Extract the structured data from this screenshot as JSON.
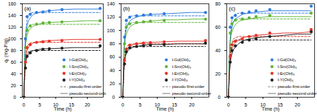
{
  "chart_data": [
    {
      "type": "scatter",
      "title": "(a)",
      "x_label": "Time (h)",
      "y_label": "qₜ (mg-P/g)",
      "xlim": [
        -0.5,
        25
      ],
      "xticks": [
        0,
        5,
        10,
        15,
        20
      ],
      "ylim": [
        0,
        160
      ],
      "yticks": [
        0,
        20,
        40,
        60,
        80,
        100,
        120,
        140,
        160
      ],
      "legend": "lower right",
      "x": [
        0,
        0.5,
        1,
        2,
        4,
        6,
        8,
        12,
        24
      ],
      "fit_x": [
        0,
        0.25,
        0.5,
        0.75,
        1,
        1.5,
        2,
        3,
        4,
        6,
        8,
        12,
        16,
        20,
        24
      ],
      "fits": [
        {
          "name": "pseudo-first-order",
          "line_style": "dashed"
        },
        {
          "name": "pseudo-second-order",
          "line_style": "solid"
        }
      ],
      "series": [
        {
          "name": "l-Gd(OH)₃",
          "color": "#2f7bdc",
          "marker": "circle",
          "values": [
            0,
            100,
            138,
            142,
            145,
            146,
            148,
            150,
            152
          ],
          "fit_values": [
            [
              0,
              65,
              102,
              122,
              132,
              141,
              144,
              145,
              145,
              145,
              145,
              145,
              145,
              145,
              145
            ],
            [
              0,
              73,
              101,
              115,
              122,
              132,
              136,
              142,
              144,
              147,
              148,
              150,
              151,
              151,
              151
            ]
          ]
        },
        {
          "name": "l-Sm(OH)₃",
          "color": "#5db535",
          "marker": "circle",
          "values": [
            0,
            85,
            115,
            122,
            125,
            127,
            128,
            129,
            131
          ],
          "fit_values": [
            [
              0,
              56,
              88,
              105,
              114,
              121,
              124,
              125,
              125,
              125,
              125,
              125,
              125,
              125,
              125
            ],
            [
              0,
              63,
              87,
              99,
              106,
              114,
              117,
              122,
              124,
              127,
              128,
              129,
              130,
              131,
              131
            ]
          ]
        },
        {
          "name": "l-Er(OH)₃",
          "color": "#e5332a",
          "marker": "circle",
          "values": [
            0,
            60,
            85,
            90,
            94,
            95,
            96,
            97,
            99
          ],
          "fit_values": [
            [
              0,
              42,
              66,
              79,
              86,
              91,
              93,
              94,
              94,
              94,
              94,
              94,
              94,
              94,
              94
            ],
            [
              0,
              48,
              66,
              75,
              80,
              86,
              89,
              93,
              94,
              96,
              97,
              98,
              99,
              99,
              99
            ]
          ]
        },
        {
          "name": "l-Y(OH)₃",
          "color": "#222222",
          "marker": "circle",
          "values": [
            0,
            50,
            70,
            76,
            80,
            82,
            83,
            84,
            88
          ],
          "fit_values": [
            [
              0,
              36,
              56,
              67,
              73,
              78,
              79,
              80,
              80,
              80,
              80,
              80,
              80,
              80,
              80
            ],
            [
              0,
              41,
              57,
              65,
              69,
              74,
              77,
              80,
              81,
              83,
              83,
              84,
              85,
              85,
              85
            ]
          ]
        }
      ]
    },
    {
      "type": "scatter",
      "title": "(b)",
      "x_label": "Time (h)",
      "xlim": [
        -0.5,
        25
      ],
      "xticks": [
        0,
        5,
        10,
        15,
        20
      ],
      "ylim": [
        0,
        140
      ],
      "yticks": [
        0,
        20,
        40,
        60,
        80,
        100,
        120,
        140
      ],
      "legend": "lower right",
      "x": [
        0,
        0.5,
        1,
        2,
        4,
        6,
        8,
        12,
        24
      ],
      "fit_x": [
        0,
        0.25,
        0.5,
        0.75,
        1,
        1.5,
        2,
        3,
        4,
        6,
        8,
        12,
        16,
        20,
        24
      ],
      "fits": [
        {
          "name": "pseudo-first-order",
          "line_style": "dashed"
        },
        {
          "name": "pseudo-second-order",
          "line_style": "solid"
        }
      ],
      "series": [
        {
          "name": "l-Gd(OH)₃",
          "color": "#2f7bdc",
          "marker": "circle",
          "values": [
            0,
            90,
            115,
            120,
            122,
            123,
            124,
            125,
            127
          ],
          "fit_values": [
            [
              0,
              55,
              85,
              102,
              111,
              118,
              121,
              122,
              122,
              122,
              122,
              122,
              122,
              122,
              122
            ],
            [
              0,
              61,
              84,
              96,
              102,
              110,
              114,
              118,
              120,
              123,
              124,
              125,
              126,
              127,
              127
            ]
          ]
        },
        {
          "name": "l-Sm(OH)₃",
          "color": "#5db535",
          "marker": "circle",
          "values": [
            0,
            80,
            105,
            110,
            112,
            113,
            114,
            115,
            117
          ],
          "fit_values": [
            [
              0,
              50,
              78,
              94,
              102,
              109,
              111,
              112,
              112,
              112,
              112,
              112,
              112,
              112,
              112
            ],
            [
              0,
              57,
              78,
              89,
              94,
              101,
              105,
              109,
              111,
              113,
              114,
              116,
              116,
              117,
              117
            ]
          ]
        },
        {
          "name": "l-Er(OH)₃",
          "color": "#e5332a",
          "marker": "circle",
          "values": [
            0,
            55,
            72,
            78,
            80,
            81,
            82,
            83,
            85
          ],
          "fit_values": [
            [
              0,
              36,
              56,
              67,
              73,
              78,
              79,
              80,
              80,
              80,
              80,
              80,
              80,
              80,
              80
            ],
            [
              0,
              41,
              56,
              64,
              68,
              73,
              76,
              79,
              80,
              82,
              82,
              83,
              84,
              84,
              84
            ]
          ]
        },
        {
          "name": "l-Y(OH)₃",
          "color": "#222222",
          "marker": "circle",
          "values": [
            0,
            50,
            68,
            74,
            76,
            77,
            78,
            79,
            81
          ],
          "fit_values": [
            [
              0,
              34,
              53,
              64,
              69,
              74,
              75,
              76,
              76,
              76,
              76,
              76,
              76,
              76,
              76
            ],
            [
              0,
              39,
              53,
              61,
              65,
              70,
              72,
              75,
              76,
              78,
              79,
              79,
              80,
              80,
              80
            ]
          ]
        }
      ]
    },
    {
      "type": "scatter",
      "title": "(c)",
      "x_label": "Time (h)",
      "xlim": [
        -0.5,
        25
      ],
      "xticks": [
        0,
        5,
        10,
        15,
        20
      ],
      "ylim": [
        0,
        80
      ],
      "yticks": [
        0,
        20,
        40,
        60,
        80
      ],
      "legend": "lower right",
      "x": [
        0,
        0.5,
        1,
        2,
        4,
        6,
        8,
        12,
        24
      ],
      "fit_x": [
        0,
        0.25,
        0.5,
        0.75,
        1,
        1.5,
        2,
        3,
        4,
        6,
        8,
        12,
        16,
        20,
        24
      ],
      "fits": [
        {
          "name": "pseudo-first-order",
          "line_style": "dashed"
        },
        {
          "name": "pseudo-second-order",
          "line_style": "solid"
        }
      ],
      "series": [
        {
          "name": "l-Gd(OH)₃",
          "color": "#2f7bdc",
          "marker": "circle",
          "values": [
            0,
            60,
            68,
            70,
            72,
            73,
            74,
            75,
            78
          ],
          "fit_values": [
            [
              0,
              32,
              50,
              60,
              66,
              70,
              71,
              72,
              72,
              72,
              72,
              72,
              72,
              72,
              72
            ],
            [
              0,
              36,
              50,
              56,
              60,
              65,
              67,
              69,
              71,
              72,
              73,
              74,
              74,
              74,
              74
            ]
          ]
        },
        {
          "name": "l-Sm(OH)₃",
          "color": "#5db535",
          "marker": "circle",
          "values": [
            0,
            55,
            63,
            66,
            67,
            68,
            69,
            70,
            72
          ],
          "fit_values": [
            [
              0,
              30,
              47,
              56,
              61,
              65,
              66,
              67,
              67,
              67,
              67,
              67,
              67,
              67,
              67
            ],
            [
              0,
              34,
              46,
              53,
              56,
              60,
              62,
              65,
              66,
              67,
              68,
              69,
              69,
              69,
              69
            ]
          ]
        },
        {
          "name": "l-Er(OH)₃",
          "color": "#e5332a",
          "marker": "circle",
          "values": [
            0,
            35,
            45,
            48,
            50,
            52,
            53,
            55,
            58
          ],
          "fit_values": [
            [
              0,
              23,
              36,
              44,
              47,
              50,
              51,
              52,
              52,
              52,
              52,
              52,
              52,
              52,
              52
            ],
            [
              0,
              22,
              32,
              38,
              41,
              45,
              47,
              49,
              51,
              52,
              53,
              54,
              55,
              55,
              56
            ]
          ]
        },
        {
          "name": "l-Y(OH)₃",
          "color": "#222222",
          "marker": "circle",
          "values": [
            0,
            30,
            40,
            44,
            47,
            49,
            50,
            52,
            56
          ],
          "fit_values": [
            [
              0,
              22,
              34,
              41,
              45,
              48,
              49,
              49,
              49,
              49,
              49,
              49,
              49,
              49,
              49
            ],
            [
              0,
              20,
              29,
              34,
              37,
              41,
              43,
              46,
              48,
              50,
              51,
              52,
              53,
              54,
              54
            ]
          ]
        }
      ]
    }
  ]
}
